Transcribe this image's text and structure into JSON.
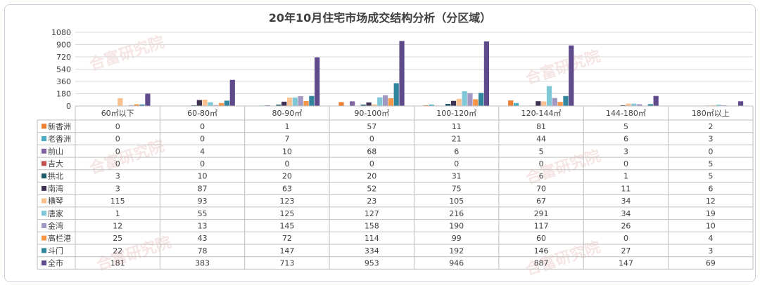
{
  "watermark": "合富研究院",
  "chart_data": {
    "type": "bar",
    "title": "20年10月住宅市场成交结构分析（分区域）",
    "categories": [
      "60㎡以下",
      "60-80㎡",
      "80-90㎡",
      "90-100㎡",
      "100-120㎡",
      "120-144㎡",
      "144-180㎡",
      "180㎡以上"
    ],
    "ylim": [
      0,
      1080
    ],
    "yticks": [
      0,
      180,
      360,
      540,
      720,
      900,
      1080
    ],
    "grid": true,
    "legend": "table-left",
    "series": [
      {
        "name": "新香洲",
        "color": "#ed7d31",
        "values": [
          0,
          0,
          1,
          57,
          11,
          81,
          5,
          2
        ]
      },
      {
        "name": "老香洲",
        "color": "#4bacc6",
        "values": [
          0,
          0,
          7,
          0,
          21,
          44,
          6,
          3
        ]
      },
      {
        "name": "前山",
        "color": "#8064a2",
        "values": [
          0,
          4,
          10,
          68,
          6,
          5,
          3,
          0
        ]
      },
      {
        "name": "吉大",
        "color": "#c0504d",
        "values": [
          0,
          0,
          0,
          0,
          0,
          0,
          0,
          5
        ]
      },
      {
        "name": "拱北",
        "color": "#215968",
        "values": [
          3,
          10,
          20,
          20,
          31,
          6,
          1,
          5
        ]
      },
      {
        "name": "南湾",
        "color": "#3f3151",
        "values": [
          3,
          87,
          63,
          52,
          75,
          70,
          11,
          6
        ]
      },
      {
        "name": "横琴",
        "color": "#fac090",
        "values": [
          115,
          93,
          123,
          23,
          105,
          67,
          34,
          12
        ]
      },
      {
        "name": "唐家",
        "color": "#7fc8d8",
        "values": [
          1,
          55,
          125,
          127,
          216,
          291,
          34,
          19
        ]
      },
      {
        "name": "金湾",
        "color": "#a397c4",
        "values": [
          12,
          13,
          145,
          158,
          190,
          117,
          26,
          10
        ]
      },
      {
        "name": "高栏港",
        "color": "#f79646",
        "values": [
          25,
          43,
          72,
          114,
          99,
          60,
          0,
          4
        ]
      },
      {
        "name": "斗门",
        "color": "#31859c",
        "values": [
          22,
          78,
          147,
          334,
          192,
          146,
          27,
          3
        ]
      },
      {
        "name": "全市",
        "color": "#5f4b8b",
        "values": [
          181,
          383,
          713,
          953,
          946,
          887,
          147,
          69
        ]
      }
    ]
  }
}
